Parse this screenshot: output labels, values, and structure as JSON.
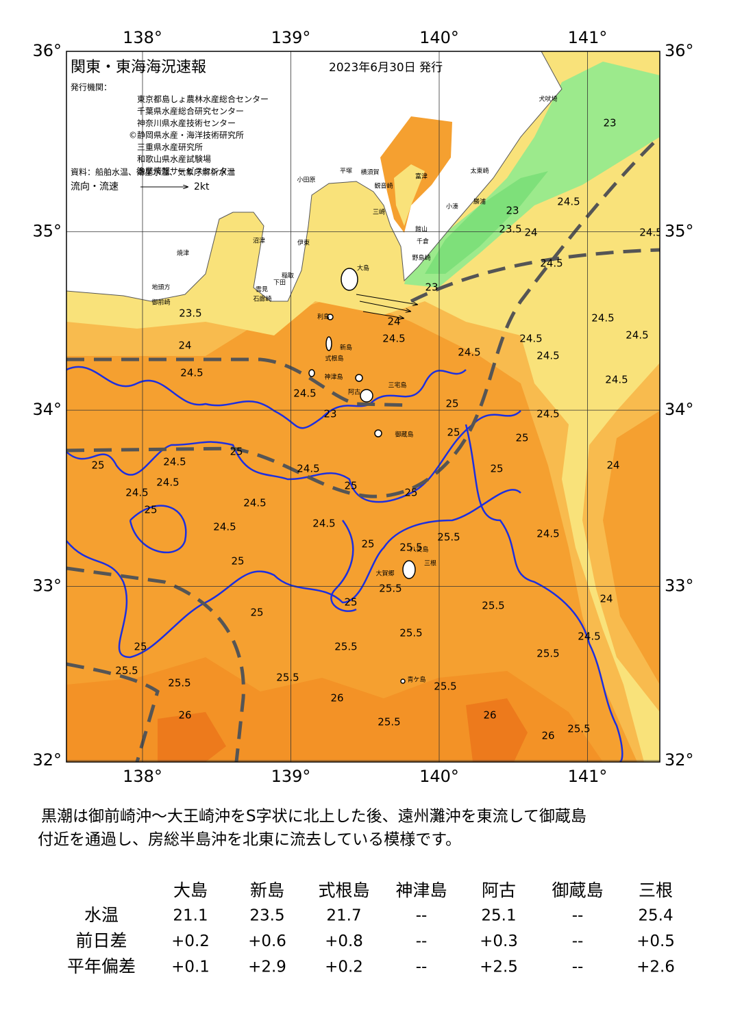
{
  "map": {
    "title": "関東・東海海況速報",
    "issued": "2023年6月30日 発行",
    "issuer_label": "発行機関：",
    "issuers": [
      "東京都島しょ農林水産総合センター",
      "千葉県水産総合研究センター",
      "神奈川県水産技術センター",
      "©静岡県水産・海洋技術研究所",
      "三重県水産研究所",
      "和歌山県水産試験場",
      "漁業情報サービスセンター"
    ],
    "source": "資料：船舶水温、衛星水温、気象庁解析水温",
    "flow_legend": "流向・流速",
    "flow_scale": "2kt",
    "lon_ticks": [
      {
        "value": 138,
        "label": "138°"
      },
      {
        "value": 139,
        "label": "139°"
      },
      {
        "value": 140,
        "label": "140°"
      },
      {
        "value": 141,
        "label": "141°"
      }
    ],
    "lat_ticks": [
      {
        "value": 36,
        "label": "36°"
      },
      {
        "value": 35,
        "label": "35°"
      },
      {
        "value": 34,
        "label": "34°"
      },
      {
        "value": 33,
        "label": "33°"
      },
      {
        "value": 32,
        "label": "32°"
      }
    ],
    "places": [
      "犬吠埼",
      "太東崎",
      "勝浦",
      "小湊",
      "館山",
      "千倉",
      "野島崎",
      "富津",
      "観音崎",
      "横須賀",
      "平塚",
      "小田原",
      "三崎",
      "沼津",
      "伊東",
      "焼津",
      "稲取",
      "下田",
      "雲見",
      "石廊崎",
      "地頭方",
      "御前崎",
      "大島",
      "利島",
      "新島",
      "式根島",
      "神津島",
      "阿古",
      "三宅島",
      "御蔵島",
      "八丈島",
      "三根",
      "大賀郷",
      "青ケ島"
    ],
    "contour_labels": [
      23.5,
      24,
      24.5,
      24.5,
      23,
      25,
      25,
      25,
      24.5,
      24.5,
      24.5,
      24.5,
      24.5,
      24.5,
      24.5,
      24.5,
      24,
      23.5,
      23,
      24.5,
      23,
      24.5,
      24,
      24.5,
      24,
      24.5,
      25.5,
      25.5,
      25.5,
      25.5,
      25.5,
      25.5,
      25.5,
      25.5,
      25.5,
      25.5,
      25,
      24.5,
      24.5,
      24.5,
      24.5,
      24.5,
      24.5,
      24.5,
      25,
      26,
      26,
      26,
      26,
      25.5,
      25.5,
      25.5,
      23,
      24,
      24.5,
      25,
      25,
      25,
      25,
      25,
      25,
      25,
      25,
      25
    ]
  },
  "summary": [
    "黒潮は御前崎沖～大王崎沖をS字状に北上した後、遠州灘沖を東流して御蔵島",
    "付近を通過し、房総半島沖を北東に流去している模様です。"
  ],
  "table": {
    "columns": [
      "大島",
      "新島",
      "式根島",
      "神津島",
      "阿古",
      "御蔵島",
      "三根"
    ],
    "rows": [
      {
        "label": "水温",
        "values": [
          "21.1",
          "23.5",
          "21.7",
          "--",
          "25.1",
          "--",
          "25.4"
        ]
      },
      {
        "label": "前日差",
        "values": [
          "+0.2",
          "+0.6",
          "+0.8",
          "--",
          "+0.3",
          "--",
          "+0.5"
        ]
      },
      {
        "label": "平年偏差",
        "values": [
          "+0.1",
          "+2.9",
          "+0.2",
          "--",
          "+2.5",
          "--",
          "+2.6"
        ]
      }
    ]
  }
}
